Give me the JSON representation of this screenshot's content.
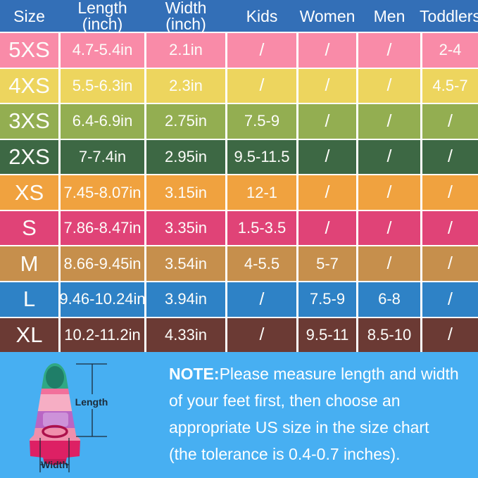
{
  "table": {
    "header_bg": "#336FB7",
    "header_text_color": "#FFFFFF",
    "divider_color": "#FFFFFF",
    "headers": [
      "Size",
      "Length\n(inch)",
      "Width\n(inch)",
      "Kids",
      "Women",
      "Men",
      "Toddlers"
    ],
    "rows": [
      {
        "color": "#F98BA8",
        "cells": [
          "5XS",
          "4.7-5.4in",
          "2.1in",
          "/",
          "/",
          "/",
          "2-4"
        ]
      },
      {
        "color": "#EDD55E",
        "cells": [
          "4XS",
          "5.5-6.3in",
          "2.3in",
          "/",
          "/",
          "/",
          "4.5-7"
        ]
      },
      {
        "color": "#93AE51",
        "cells": [
          "3XS",
          "6.4-6.9in",
          "2.75in",
          "7.5-9",
          "/",
          "/",
          "/"
        ]
      },
      {
        "color": "#3D6844",
        "cells": [
          "2XS",
          "7-7.4in",
          "2.95in",
          "9.5-11.5",
          "/",
          "/",
          "/"
        ]
      },
      {
        "color": "#F0A23F",
        "cells": [
          "XS",
          "7.45-8.07in",
          "3.15in",
          "12-1",
          "/",
          "/",
          "/"
        ]
      },
      {
        "color": "#E04377",
        "cells": [
          "S",
          "7.86-8.47in",
          "3.35in",
          "1.5-3.5",
          "/",
          "/",
          "/"
        ]
      },
      {
        "color": "#C68F4C",
        "cells": [
          "M",
          "8.66-9.45in",
          "3.54in",
          "4-5.5",
          "5-7",
          "/",
          "/"
        ]
      },
      {
        "color": "#2E82C6",
        "cells": [
          "L",
          "9.46-10.24in",
          "3.94in",
          "/",
          "7.5-9",
          "6-8",
          "/"
        ]
      },
      {
        "color": "#6B3A34",
        "cells": [
          "XL",
          "10.2-11.2in",
          "4.33in",
          "/",
          "9.5-11",
          "8.5-10",
          "/"
        ]
      }
    ]
  },
  "footer": {
    "bg": "#47AFF2",
    "note": {
      "bold_prefix": "NOTE:",
      "lines": [
        "Please measure length and width",
        "of your feet first, then choose an",
        "appropriate US size in the size chart",
        "(the tolerance is 0.4-0.7 inches)."
      ]
    },
    "fin_labels": {
      "length": "Length",
      "width": "Width"
    }
  },
  "chart_data": {
    "type": "table",
    "columns": [
      "Size",
      "Length (inch)",
      "Width (inch)",
      "Kids",
      "Women",
      "Men",
      "Toddlers"
    ],
    "rows": [
      [
        "5XS",
        "4.7-5.4in",
        "2.1in",
        "/",
        "/",
        "/",
        "2-4"
      ],
      [
        "4XS",
        "5.5-6.3in",
        "2.3in",
        "/",
        "/",
        "/",
        "4.5-7"
      ],
      [
        "3XS",
        "6.4-6.9in",
        "2.75in",
        "7.5-9",
        "/",
        "/",
        "/"
      ],
      [
        "2XS",
        "7-7.4in",
        "2.95in",
        "9.5-11.5",
        "/",
        "/",
        "/"
      ],
      [
        "XS",
        "7.45-8.07in",
        "3.15in",
        "12-1",
        "/",
        "/",
        "/"
      ],
      [
        "S",
        "7.86-8.47in",
        "3.35in",
        "1.5-3.5",
        "/",
        "/",
        "/"
      ],
      [
        "M",
        "8.66-9.45in",
        "3.54in",
        "4-5.5",
        "5-7",
        "/",
        "/"
      ],
      [
        "L",
        "9.46-10.24in",
        "3.94in",
        "/",
        "7.5-9",
        "6-8",
        "/"
      ],
      [
        "XL",
        "10.2-11.2in",
        "4.33in",
        "/",
        "9.5-11",
        "8.5-10",
        "/"
      ]
    ]
  }
}
